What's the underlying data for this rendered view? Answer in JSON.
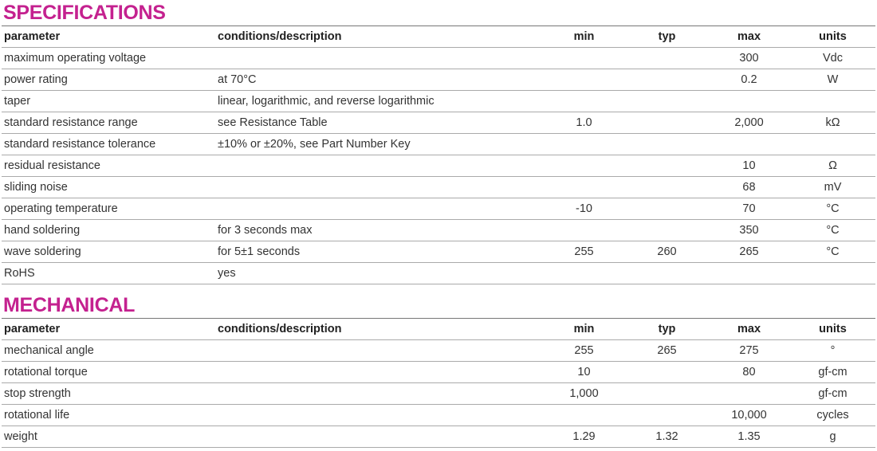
{
  "sections": [
    {
      "title": "SPECIFICATIONS",
      "columns": [
        "parameter",
        "conditions/description",
        "min",
        "typ",
        "max",
        "units"
      ],
      "rows": [
        [
          "maximum operating voltage",
          null,
          null,
          null,
          "300",
          "Vdc"
        ],
        [
          "power rating",
          "at 70°C",
          null,
          null,
          "0.2",
          "W"
        ],
        [
          "taper",
          "linear, logarithmic, and reverse logarithmic",
          null,
          null,
          null,
          null
        ],
        [
          "standard resistance range",
          "see Resistance Table",
          "1.0",
          null,
          "2,000",
          "kΩ"
        ],
        [
          "standard resistance tolerance",
          "±10% or ±20%, see Part Number Key",
          null,
          null,
          null,
          null
        ],
        [
          "residual resistance",
          null,
          null,
          null,
          "10",
          "Ω"
        ],
        [
          "sliding noise",
          null,
          null,
          null,
          "68",
          "mV"
        ],
        [
          "operating temperature",
          null,
          "-10",
          null,
          "70",
          "°C"
        ],
        [
          "hand soldering",
          "for 3 seconds max",
          null,
          null,
          "350",
          "°C"
        ],
        [
          "wave soldering",
          "for 5±1 seconds",
          "255",
          "260",
          "265",
          "°C"
        ],
        [
          "RoHS",
          "yes",
          null,
          null,
          null,
          null
        ]
      ]
    },
    {
      "title": "MECHANICAL",
      "columns": [
        "parameter",
        "conditions/description",
        "min",
        "typ",
        "max",
        "units"
      ],
      "rows": [
        [
          "mechanical angle",
          null,
          "255",
          "265",
          "275",
          "°"
        ],
        [
          "rotational torque",
          null,
          "10",
          null,
          "80",
          "gf-cm"
        ],
        [
          "stop strength",
          null,
          "1,000",
          null,
          null,
          "gf-cm"
        ],
        [
          "rotational life",
          null,
          null,
          null,
          "10,000",
          "cycles"
        ],
        [
          "weight",
          null,
          "1.29",
          "1.32",
          "1.35",
          "g"
        ]
      ]
    }
  ]
}
